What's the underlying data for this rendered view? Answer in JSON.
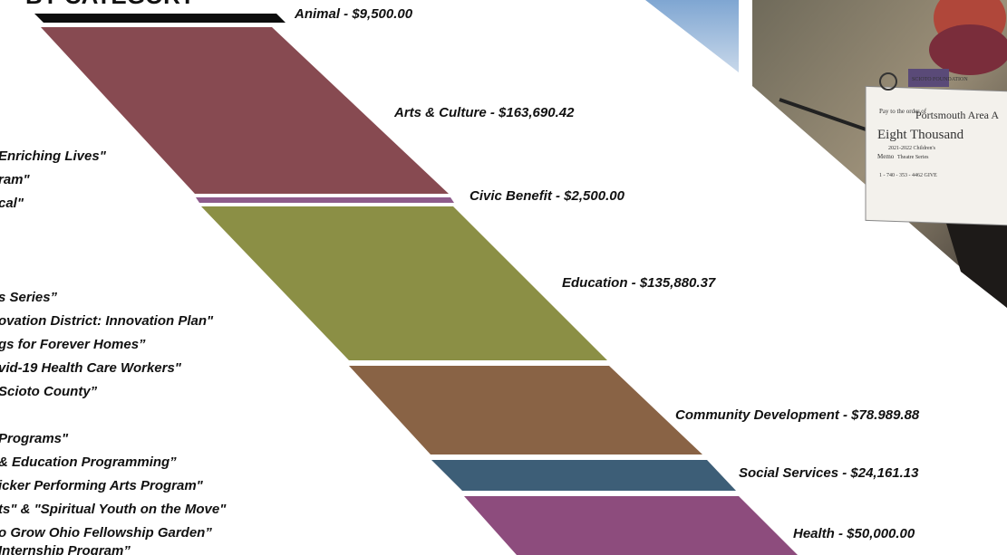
{
  "header": {
    "title": "BY CATEGORY"
  },
  "categories": [
    {
      "label": "Animal - $9,500.00"
    },
    {
      "label": "Arts & Culture - $163,690.42"
    },
    {
      "label": "Civic Benefit - $2,500.00"
    },
    {
      "label": "Education - $135,880.37"
    },
    {
      "label": "Community Development - $78.989.88"
    },
    {
      "label": "Social Services - $24,161.13"
    },
    {
      "label": "Health - $50,000.00"
    }
  ],
  "programs": [
    "Enriching Lives\"",
    "ram\"",
    "cal\"",
    "s Series”",
    "ovation District: Innovation Plan\"",
    "gs for Forever Homes”",
    "vid-19 Health Care Workers\"",
    "Scioto County”",
    "Programs\"",
    "& Education Programming”",
    "icker Performing Arts Program\"",
    "ts\" & \"Spiritual Youth on the Move\"",
    "o Grow Ohio Fellowship Garden”",
    "Internship Program”"
  ],
  "check": {
    "org": "SCIOTO FOUNDATION",
    "pay": "Pay to the order of",
    "payee": "Portsmouth Area A",
    "amount": "Eight Thousand",
    "memo": "Memo",
    "memo_line1": "2021-2022 Children's",
    "memo_line2": "Theatre Series",
    "phone": "1 - 740 - 353 - 4462 GIVE"
  }
}
